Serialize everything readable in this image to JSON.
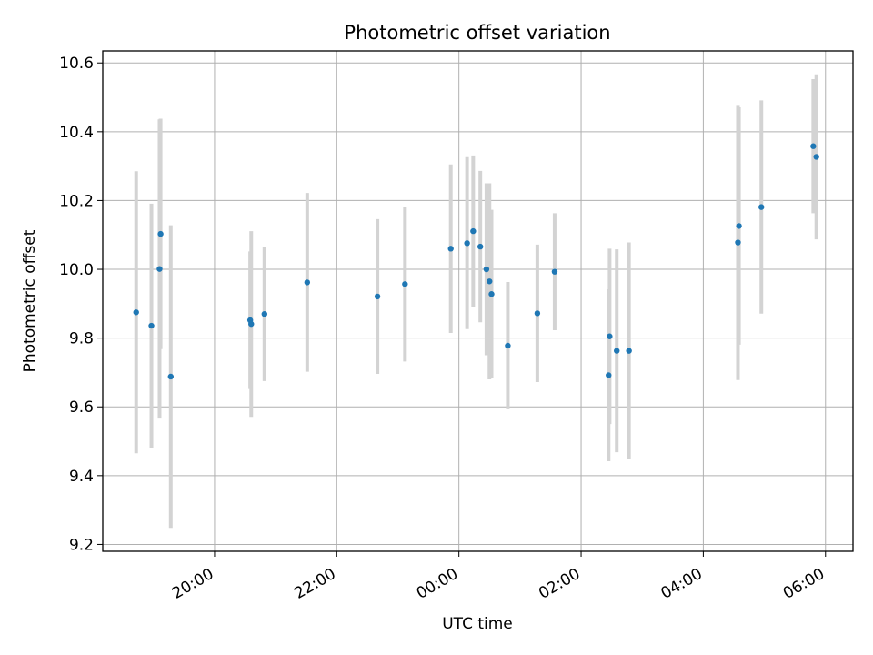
{
  "chart_data": {
    "type": "scatter",
    "title": "Photometric offset variation",
    "xlabel": "UTC time",
    "ylabel": "Photometric offset",
    "x_tick_labels": [
      "20:00",
      "22:00",
      "00:00",
      "02:00",
      "04:00",
      "06:00"
    ],
    "y_tick_labels": [
      "9.2",
      "9.4",
      "9.6",
      "9.8",
      "10.0",
      "10.2",
      "10.4",
      "10.6"
    ],
    "y_ticks": [
      9.2,
      9.4,
      9.6,
      9.8,
      10.0,
      10.2,
      10.4,
      10.6
    ],
    "ylim": [
      9.18,
      10.635
    ],
    "xlim_hours": [
      18.17,
      6.45
    ],
    "grid": true,
    "marker_color": "#1f77b4",
    "errorbar_color": "#d3d3d3",
    "series": [
      {
        "points": [
          {
            "x": "18:43",
            "y": 9.875,
            "err": 0.41
          },
          {
            "x": "18:58",
            "y": 9.836,
            "err": 0.355
          },
          {
            "x": "19:06",
            "y": 10.001,
            "err": 0.435
          },
          {
            "x": "19:07",
            "y": 10.103,
            "err": 0.335
          },
          {
            "x": "19:17",
            "y": 9.688,
            "err": 0.44
          },
          {
            "x": "20:35",
            "y": 9.852,
            "err": 0.2
          },
          {
            "x": "20:36",
            "y": 9.841,
            "err": 0.27
          },
          {
            "x": "20:49",
            "y": 9.87,
            "err": 0.195
          },
          {
            "x": "21:31",
            "y": 9.962,
            "err": 0.26
          },
          {
            "x": "22:40",
            "y": 9.921,
            "err": 0.225
          },
          {
            "x": "23:07",
            "y": 9.957,
            "err": 0.225
          },
          {
            "x": "23:52",
            "y": 10.06,
            "err": 0.245
          },
          {
            "x": "00:08",
            "y": 10.076,
            "err": 0.25
          },
          {
            "x": "00:14",
            "y": 10.111,
            "err": 0.22
          },
          {
            "x": "00:21",
            "y": 10.066,
            "err": 0.22
          },
          {
            "x": "00:27",
            "y": 10.0,
            "err": 0.25
          },
          {
            "x": "00:30",
            "y": 9.965,
            "err": 0.285
          },
          {
            "x": "00:32",
            "y": 9.928,
            "err": 0.245
          },
          {
            "x": "00:48",
            "y": 9.778,
            "err": 0.185
          },
          {
            "x": "01:17",
            "y": 9.872,
            "err": 0.2
          },
          {
            "x": "01:34",
            "y": 9.993,
            "err": 0.17
          },
          {
            "x": "02:27",
            "y": 9.692,
            "err": 0.25
          },
          {
            "x": "02:28",
            "y": 9.805,
            "err": 0.255
          },
          {
            "x": "02:35",
            "y": 9.763,
            "err": 0.295
          },
          {
            "x": "02:47",
            "y": 9.763,
            "err": 0.315
          },
          {
            "x": "04:34",
            "y": 10.078,
            "err": 0.4
          },
          {
            "x": "04:35",
            "y": 10.126,
            "err": 0.345
          },
          {
            "x": "04:57",
            "y": 10.181,
            "err": 0.31
          },
          {
            "x": "05:48",
            "y": 10.358,
            "err": 0.195
          },
          {
            "x": "05:51",
            "y": 10.327,
            "err": 0.24
          }
        ]
      }
    ]
  }
}
